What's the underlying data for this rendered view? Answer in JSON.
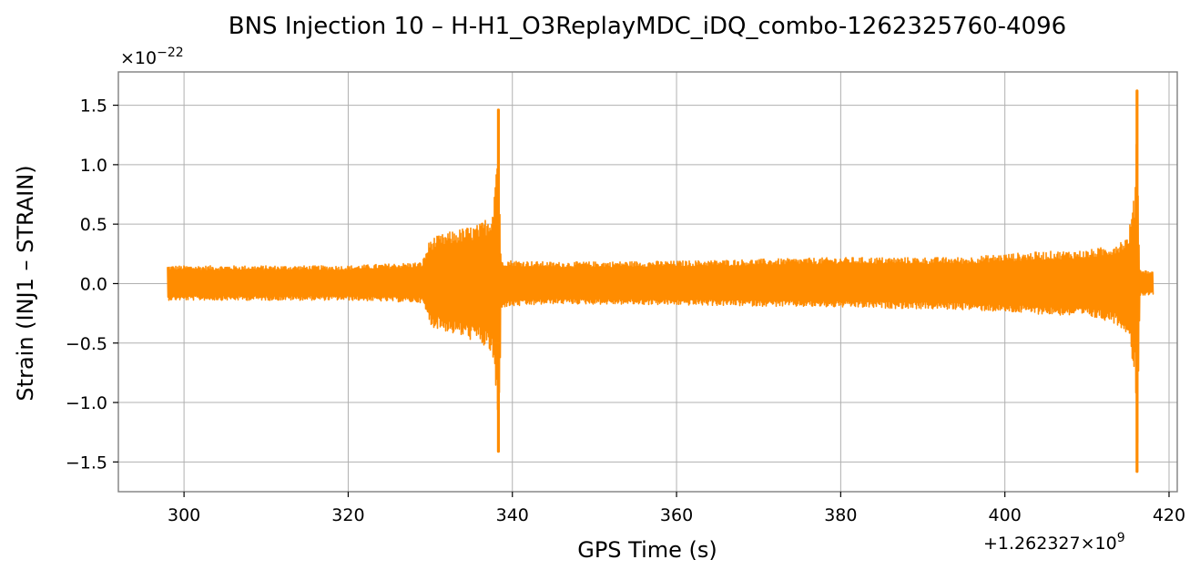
{
  "chart_data": {
    "type": "line",
    "title": "BNS Injection 10 – H-H1_O3ReplayMDC_iDQ_combo-1262325760-4096",
    "xlabel": "GPS Time (s)",
    "ylabel": "Strain (INJ1 – STRAIN)",
    "x_offset_label": "+1.262327×10",
    "x_offset_exponent": "9",
    "y_scale_base": "×10",
    "y_scale_exponent": "−22",
    "x_offset": 1262327000,
    "y_scale": 1e-22,
    "xlim": [
      292,
      421
    ],
    "ylim": [
      -1.75,
      1.78
    ],
    "x_ticks": [
      300,
      320,
      340,
      360,
      380,
      400,
      420
    ],
    "x_tick_labels": [
      "300",
      "320",
      "340",
      "360",
      "380",
      "400",
      "420"
    ],
    "y_ticks": [
      -1.5,
      -1.0,
      -0.5,
      0.0,
      0.5,
      1.0,
      1.5
    ],
    "y_tick_labels": [
      "−1.5",
      "−1.0",
      "−0.5",
      "0.0",
      "0.5",
      "1.0",
      "1.5"
    ],
    "grid": true,
    "series": [
      {
        "color": "#ff8c00",
        "x_start": 298.0,
        "x_end": 418.0,
        "events": [
          {
            "merger_time": 338.3,
            "onset_time": 329.0,
            "peak_positive": 1.46,
            "peak_negative": -1.41
          },
          {
            "merger_time": 416.1,
            "onset_time": 400.0,
            "peak_positive": 1.62,
            "peak_negative": -1.58
          }
        ],
        "envelope": {
          "x": [
            298.0,
            320,
            329.0,
            330.0,
            333,
            336,
            337.5,
            338.0,
            338.3,
            338.6,
            345,
            360,
            380,
            395,
            400,
            405,
            410,
            413,
            415,
            415.8,
            416.1,
            416.4,
            418.0
          ],
          "upper": [
            0.15,
            0.15,
            0.18,
            0.38,
            0.45,
            0.5,
            0.6,
            1.0,
            1.46,
            0.2,
            0.18,
            0.19,
            0.22,
            0.22,
            0.25,
            0.27,
            0.28,
            0.32,
            0.4,
            0.75,
            1.62,
            0.12,
            0.1
          ],
          "lower": [
            -0.14,
            -0.14,
            -0.16,
            -0.36,
            -0.43,
            -0.5,
            -0.6,
            -1.0,
            -1.41,
            -0.2,
            -0.17,
            -0.18,
            -0.2,
            -0.22,
            -0.24,
            -0.26,
            -0.28,
            -0.32,
            -0.42,
            -0.8,
            -1.58,
            -0.1,
            -0.09
          ]
        }
      }
    ]
  }
}
